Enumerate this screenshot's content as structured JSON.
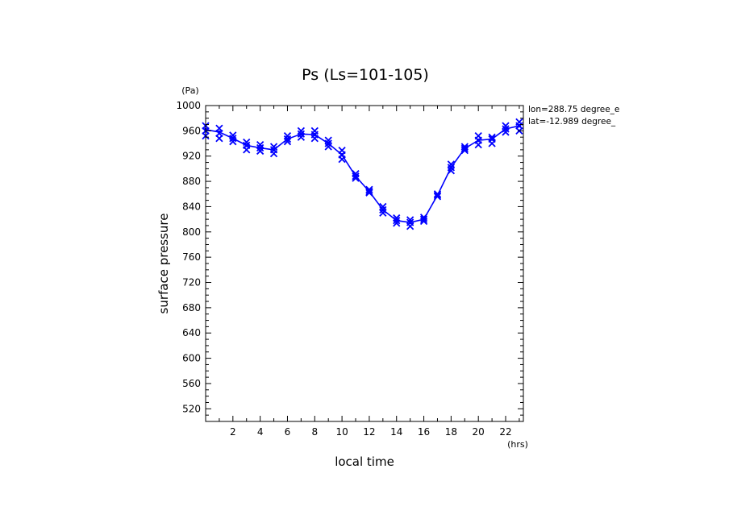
{
  "chart_data": {
    "type": "line",
    "title": "Ps (Ls=101-105)",
    "xlabel": "local time",
    "ylabel": "surface pressure",
    "x_unit": "(hrs)",
    "y_unit": "(Pa)",
    "annotations": [
      "lon=288.75 degree_e",
      "lat=-12.989 degree_"
    ],
    "xlim": [
      0,
      23.3
    ],
    "ylim": [
      500,
      1000
    ],
    "x_ticks": [
      2,
      4,
      6,
      8,
      10,
      12,
      14,
      16,
      18,
      20,
      22
    ],
    "y_ticks": [
      520,
      560,
      600,
      640,
      680,
      720,
      760,
      800,
      840,
      880,
      920,
      960,
      1000
    ],
    "line_color": "#0000ff",
    "grid": false,
    "series": [
      {
        "x": [
          0.0,
          1.0,
          2.0,
          3.0,
          4.0,
          5.0,
          6.0,
          7.0,
          8.0,
          9.0,
          10.0,
          11.0,
          12.0,
          13.0,
          14.0,
          15.0,
          16.0,
          17.0,
          18.0,
          19.0,
          20.0,
          21.0,
          22.0,
          23.0
        ],
        "y": [
          962,
          958,
          948,
          937,
          933,
          930,
          947,
          955,
          954,
          940,
          922,
          888,
          864,
          835,
          818,
          815,
          820,
          858,
          902,
          932,
          945,
          947,
          963,
          968
        ]
      }
    ],
    "scatter": {
      "x": [
        0.0,
        0.0,
        0.0,
        1.0,
        1.0,
        1.0,
        2.0,
        2.0,
        2.0,
        3.0,
        3.0,
        3.0,
        4.0,
        4.0,
        4.0,
        5.0,
        5.0,
        5.0,
        6.0,
        6.0,
        6.0,
        7.0,
        7.0,
        7.0,
        8.0,
        8.0,
        8.0,
        9.0,
        9.0,
        9.0,
        10.0,
        10.0,
        10.0,
        11.0,
        11.0,
        11.0,
        12.0,
        12.0,
        12.0,
        13.0,
        13.0,
        13.0,
        14.0,
        14.0,
        14.0,
        15.0,
        15.0,
        15.0,
        16.0,
        16.0,
        16.0,
        17.0,
        17.0,
        17.0,
        18.0,
        18.0,
        18.0,
        19.0,
        19.0,
        19.0,
        20.0,
        20.0,
        20.0,
        21.0,
        21.0,
        21.0,
        22.0,
        22.0,
        22.0,
        23.0,
        23.0,
        23.0
      ],
      "y": [
        952,
        960,
        968,
        948,
        956,
        964,
        943,
        948,
        953,
        930,
        937,
        942,
        928,
        933,
        938,
        924,
        930,
        935,
        943,
        947,
        952,
        950,
        955,
        960,
        948,
        954,
        960,
        935,
        940,
        945,
        915,
        922,
        929,
        885,
        888,
        892,
        862,
        864,
        867,
        830,
        835,
        840,
        814,
        818,
        822,
        809,
        815,
        819,
        817,
        820,
        823,
        856,
        858,
        860,
        897,
        902,
        907,
        929,
        932,
        935,
        938,
        945,
        952,
        940,
        947,
        950,
        958,
        963,
        968,
        960,
        968,
        974
      ]
    }
  }
}
